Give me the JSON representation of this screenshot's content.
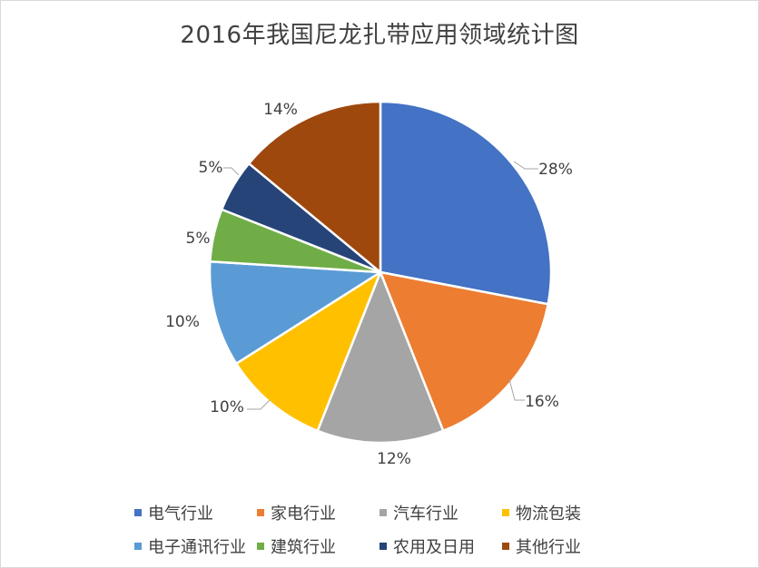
{
  "chart_data": {
    "type": "pie",
    "title": "2016年我国尼龙扎带应用领域统计图",
    "slices": [
      {
        "label": "电气行业",
        "value": 28,
        "color": "#4472C4"
      },
      {
        "label": "家电行业",
        "value": 16,
        "color": "#ED7D31"
      },
      {
        "label": "汽车行业",
        "value": 12,
        "color": "#A5A5A5"
      },
      {
        "label": "物流包装",
        "value": 10,
        "color": "#FFC000"
      },
      {
        "label": "电子通讯行业",
        "value": 10,
        "color": "#5B9BD5"
      },
      {
        "label": "建筑行业",
        "value": 5,
        "color": "#70AD47"
      },
      {
        "label": "农用及日用",
        "value": 5,
        "color": "#264478"
      },
      {
        "label": "其他行业",
        "value": 14,
        "color": "#9E480E"
      }
    ],
    "value_suffix": "%",
    "legend_position": "bottom"
  }
}
